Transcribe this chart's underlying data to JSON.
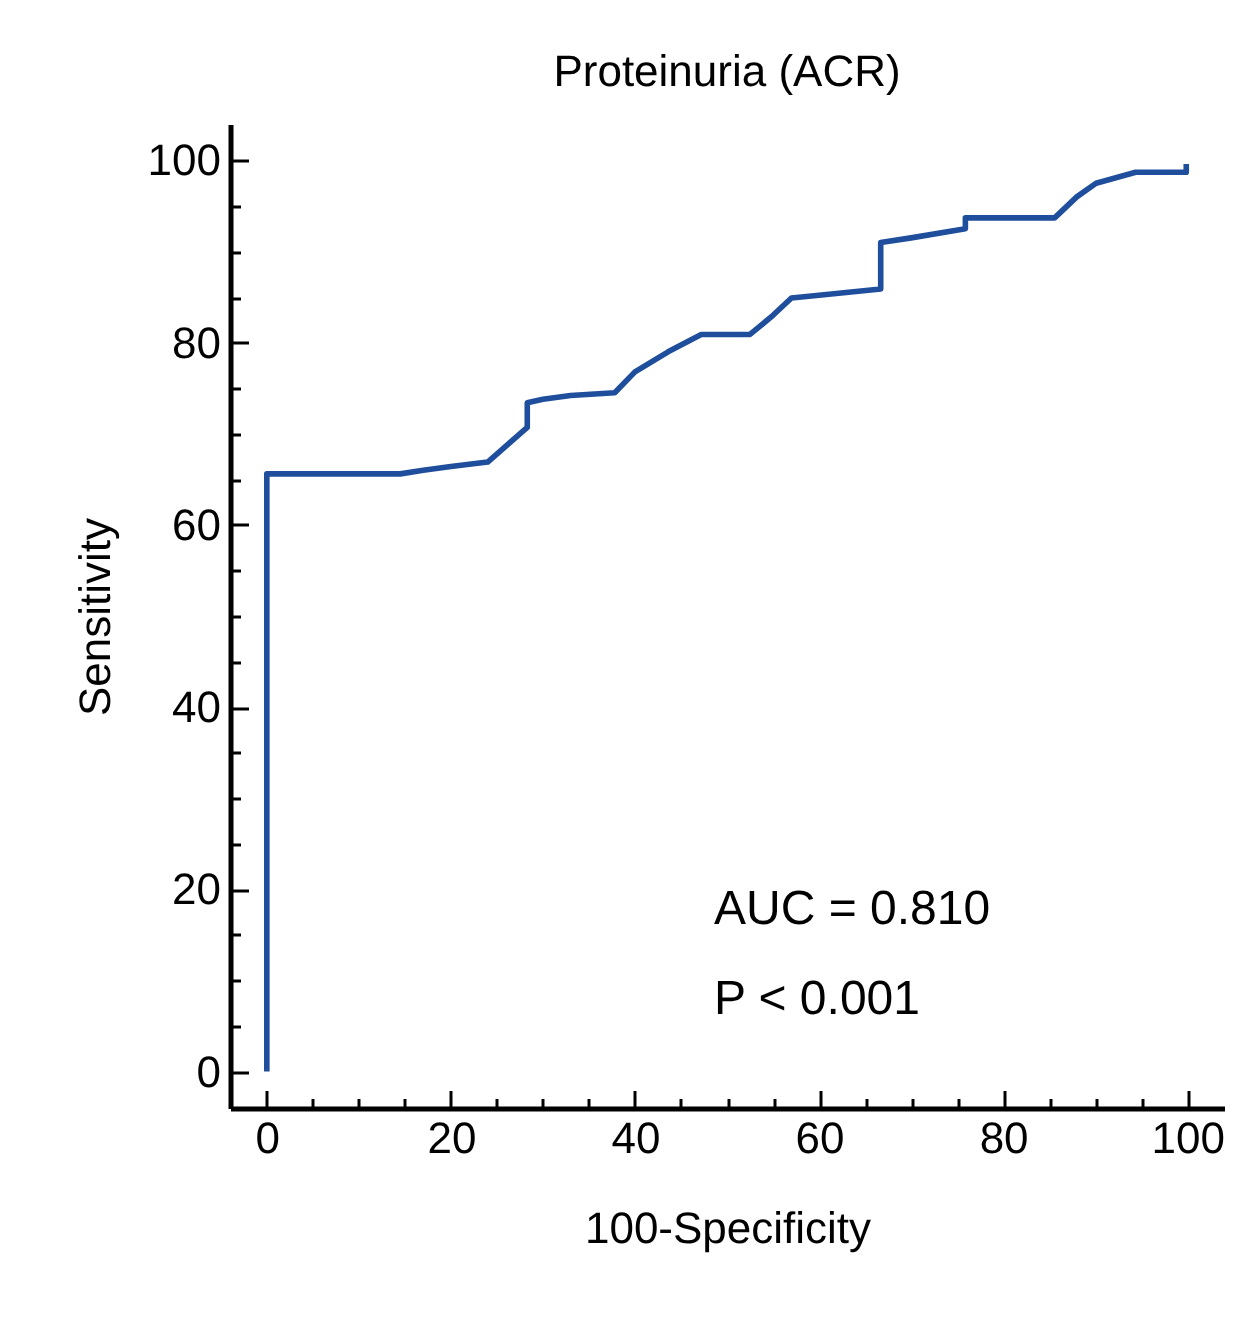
{
  "chart_data": {
    "type": "line",
    "title": "Proteinuria (ACR)",
    "xlabel": "100-Specificity",
    "ylabel": "Sensitivity",
    "x": [
      0,
      0,
      14.5,
      17,
      20,
      24,
      28.3,
      28.3,
      30,
      33,
      37.8,
      40,
      43.6,
      47.2,
      52.5,
      55,
      57,
      60,
      66.7,
      66.7,
      70,
      75.9,
      75.9,
      85.6,
      88,
      90.1,
      94.4,
      99.9,
      99.9
    ],
    "series": [
      {
        "color": "#1f4e9c",
        "values": [
          0,
          65.6,
          65.6,
          66,
          66.4,
          66.9,
          70.7,
          73.4,
          73.8,
          74.2,
          74.5,
          76.8,
          79,
          80.9,
          80.9,
          83,
          84.9,
          85.2,
          85.9,
          91,
          91.5,
          92.5,
          93.7,
          93.7,
          96,
          97.5,
          98.7,
          98.7,
          99.6
        ]
      }
    ],
    "xlim": [
      -4,
      104
    ],
    "ylim": [
      -4,
      104
    ],
    "xticks": [
      0,
      {
        "value": 5,
        "label": null
      },
      {
        "value": 10,
        "label": null
      },
      {
        "value": 15,
        "label": null
      },
      20,
      {
        "value": 25,
        "label": null
      },
      {
        "value": 30,
        "label": null
      },
      {
        "value": 35,
        "label": null
      },
      40,
      {
        "value": 45,
        "label": null
      },
      {
        "value": 50,
        "label": null
      },
      {
        "value": 55,
        "label": null
      },
      60,
      {
        "value": 65,
        "label": null
      },
      {
        "value": 70,
        "label": null
      },
      {
        "value": 75,
        "label": null
      },
      80,
      {
        "value": 85,
        "label": null
      },
      {
        "value": 90,
        "label": null
      },
      {
        "value": 95,
        "label": null
      },
      100
    ],
    "yticks": [
      0,
      {
        "value": 5,
        "label": null
      },
      {
        "value": 10,
        "label": null
      },
      {
        "value": 15,
        "label": null
      },
      20,
      {
        "value": 25,
        "label": null
      },
      {
        "value": 30,
        "label": null
      },
      {
        "value": 35,
        "label": null
      },
      40,
      {
        "value": 45,
        "label": null
      },
      {
        "value": 50,
        "label": null
      },
      {
        "value": 55,
        "label": null
      },
      60,
      {
        "value": 65,
        "label": null
      },
      {
        "value": 70,
        "label": null
      },
      {
        "value": 75,
        "label": null
      },
      80,
      {
        "value": 85,
        "label": null
      },
      {
        "value": 90,
        "label": null
      },
      {
        "value": 95,
        "label": null
      },
      100
    ],
    "annotations": [
      "AUC = 0.810",
      "P < 0.001"
    ],
    "grid": false,
    "legend": false,
    "marker": "none",
    "line_style": "solid"
  }
}
